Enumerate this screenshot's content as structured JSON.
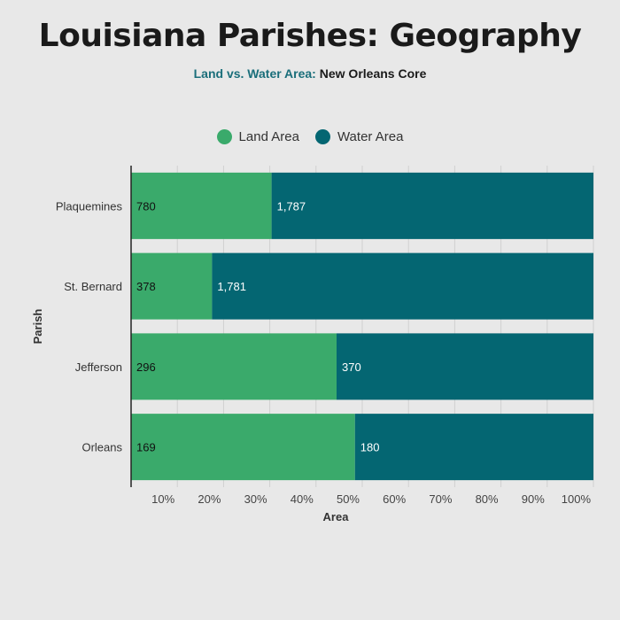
{
  "title": "Louisiana Parishes: Geography",
  "subtitle": {
    "accent": "Land vs. Water Area:",
    "rest": "New Orleans Core"
  },
  "colors": {
    "land": "#3aaa6b",
    "water": "#046672",
    "grid": "#d0d0d0",
    "axis": "#333333"
  },
  "chart_data": {
    "type": "bar",
    "orientation": "horizontal",
    "stacked": "percent",
    "categories": [
      "Plaquemines",
      "St. Bernard",
      "Jefferson",
      "Orleans"
    ],
    "series": [
      {
        "name": "Land Area",
        "values": [
          780,
          378,
          296,
          169
        ],
        "labels": [
          "780",
          "378",
          "296",
          "169"
        ]
      },
      {
        "name": "Water Area",
        "values": [
          1787,
          1781,
          370,
          180
        ],
        "labels": [
          "1,787",
          "1,781",
          "370",
          "180"
        ]
      }
    ],
    "xticks": [
      "10%",
      "20%",
      "30%",
      "40%",
      "50%",
      "60%",
      "70%",
      "80%",
      "90%",
      "100%"
    ],
    "xlabel": "Area",
    "ylabel": "Parish",
    "xlim": [
      0,
      100
    ],
    "grid": true,
    "legend": "top-center"
  }
}
